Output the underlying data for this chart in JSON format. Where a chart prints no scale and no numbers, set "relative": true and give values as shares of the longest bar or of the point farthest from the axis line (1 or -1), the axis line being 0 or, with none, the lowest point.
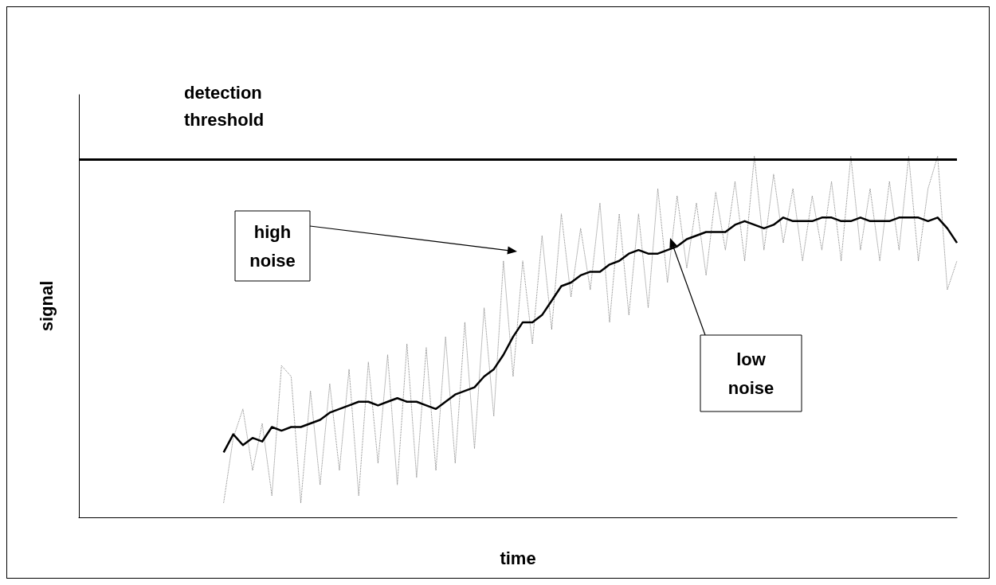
{
  "chart_data": {
    "type": "line",
    "relative": true,
    "xlabel": "time",
    "ylabel": "signal",
    "categories": [
      null,
      null,
      null,
      null,
      null,
      null,
      null,
      null,
      null,
      null,
      null,
      null,
      null,
      null,
      null,
      null,
      null,
      null,
      null,
      null,
      null,
      null,
      null,
      null,
      null,
      null,
      null,
      null,
      null,
      null,
      null,
      null,
      null,
      null,
      null,
      null,
      null,
      null,
      null,
      null,
      null,
      null,
      null,
      null,
      null,
      null,
      null,
      null,
      null,
      null,
      null,
      null,
      null,
      null,
      null,
      null,
      null,
      null,
      null,
      null,
      null,
      null,
      null,
      null,
      null,
      null,
      null,
      null,
      null,
      null,
      null,
      null,
      null,
      null,
      null,
      null,
      null,
      null,
      null,
      null,
      null,
      null,
      null,
      null,
      null,
      null,
      null,
      null,
      null,
      null,
      null,
      null
    ],
    "series": [
      {
        "color": "#808080",
        "line_style": "dotted",
        "values": [
          null,
          null,
          null,
          null,
          null,
          null,
          null,
          null,
          null,
          null,
          null,
          null,
          null,
          null,
          null,
          0.04,
          0.22,
          0.3,
          0.13,
          0.26,
          0.06,
          0.42,
          0.39,
          0.04,
          0.35,
          0.09,
          0.37,
          0.13,
          0.41,
          0.06,
          0.43,
          0.15,
          0.45,
          0.09,
          0.48,
          0.11,
          0.47,
          0.13,
          0.5,
          0.15,
          0.54,
          0.19,
          0.58,
          0.28,
          0.71,
          0.39,
          0.71,
          0.48,
          0.78,
          0.52,
          0.84,
          0.61,
          0.8,
          0.63,
          0.87,
          0.54,
          0.84,
          0.56,
          0.84,
          0.58,
          0.91,
          0.65,
          0.89,
          0.69,
          0.87,
          0.67,
          0.9,
          0.74,
          0.93,
          0.71,
          1.0,
          0.74,
          0.95,
          0.76,
          0.91,
          0.71,
          0.89,
          0.74,
          0.93,
          0.71,
          1.0,
          0.74,
          0.91,
          0.71,
          0.93,
          0.74,
          1.0,
          0.71,
          0.91,
          1.0,
          0.63,
          0.71
        ]
      },
      {
        "color": "#000000",
        "line_style": "solid",
        "values": [
          null,
          null,
          null,
          null,
          null,
          null,
          null,
          null,
          null,
          null,
          null,
          null,
          null,
          null,
          null,
          0.18,
          0.23,
          0.2,
          0.22,
          0.21,
          0.25,
          0.24,
          0.25,
          0.25,
          0.26,
          0.27,
          0.29,
          0.3,
          0.31,
          0.32,
          0.32,
          0.31,
          0.32,
          0.33,
          0.32,
          0.32,
          0.31,
          0.3,
          0.32,
          0.34,
          0.35,
          0.36,
          0.39,
          0.41,
          0.45,
          0.5,
          0.54,
          0.54,
          0.56,
          0.6,
          0.64,
          0.65,
          0.67,
          0.68,
          0.68,
          0.7,
          0.71,
          0.73,
          0.74,
          0.73,
          0.73,
          0.74,
          0.75,
          0.77,
          0.78,
          0.79,
          0.79,
          0.79,
          0.81,
          0.82,
          0.81,
          0.8,
          0.81,
          0.83,
          0.82,
          0.82,
          0.82,
          0.83,
          0.83,
          0.82,
          0.82,
          0.83,
          0.82,
          0.82,
          0.82,
          0.83,
          0.83,
          0.83,
          0.82,
          0.83,
          0.8,
          0.76
        ]
      }
    ],
    "ref_lines": [
      {
        "axis": "y",
        "value": 0.99,
        "label": "detection threshold",
        "color": "#000000",
        "line_style": "solid"
      }
    ],
    "annotations": [
      "high noise",
      "low noise"
    ],
    "grid": false,
    "marker": "none"
  }
}
